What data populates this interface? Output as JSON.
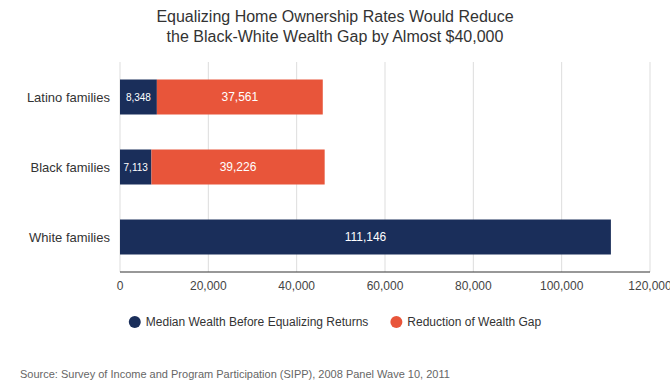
{
  "chart_data": {
    "type": "bar",
    "orientation": "horizontal",
    "stacked": true,
    "title": "Equalizing Home Ownership Rates Would Reduce\nthe Black-White Wealth Gap by Almost $40,000",
    "source": "Source: Survey of Income and Program Participation (SIPP), 2008 Panel Wave 10, 2011",
    "categories": [
      "White families",
      "Black families",
      "Latino families"
    ],
    "series": [
      {
        "name": "Median Wealth Before Equalizing Returns",
        "color": "#1a2e5a",
        "values": [
          111146,
          7113,
          8348
        ],
        "value_labels": [
          "111,146",
          "7,113",
          "8,348"
        ]
      },
      {
        "name": "Reduction of Wealth Gap",
        "color": "#e8553a",
        "values": [
          0,
          39226,
          37561
        ],
        "value_labels": [
          null,
          "39,226",
          "37,561"
        ]
      }
    ],
    "data_labels": true,
    "xlim": [
      0,
      120000
    ],
    "xticks": [
      0,
      {
        "value": 20000,
        "label": "20,000"
      },
      {
        "value": 40000,
        "label": "40,000"
      },
      {
        "value": 60000,
        "label": "60,000"
      },
      {
        "value": 80000,
        "label": "80,000"
      },
      {
        "value": 100000,
        "label": "100,000"
      },
      {
        "value": 120000,
        "label": "120,000"
      }
    ],
    "grid": true,
    "legend": "bottom"
  }
}
